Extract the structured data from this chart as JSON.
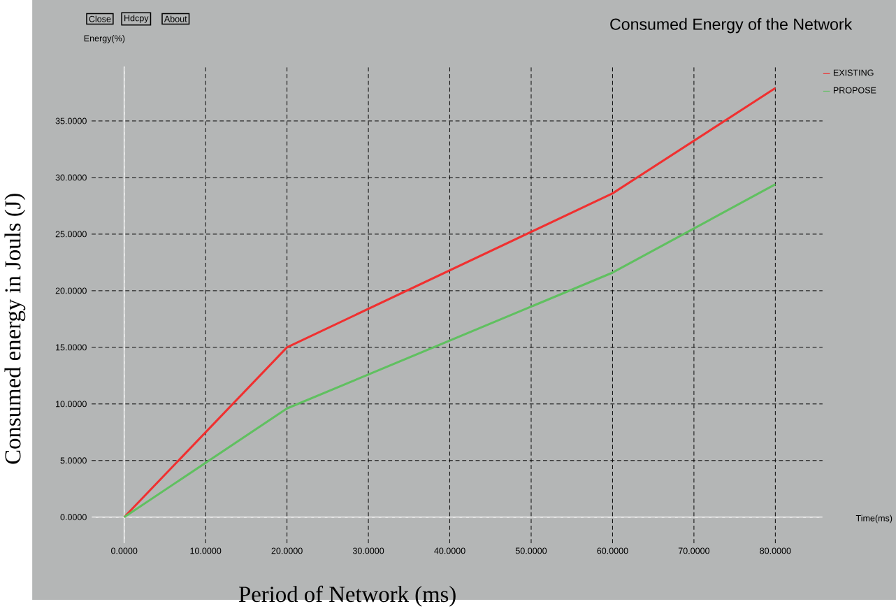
{
  "chart_data": {
    "type": "line",
    "title": "Consumed Energy of the Network",
    "xlabel": "Period of Network (ms)",
    "ylabel": "Consumed energy in Jouls (J)",
    "annotations": [
      "Close",
      "Hdcpy",
      "About",
      "Energy(%)",
      "Time(ms)"
    ],
    "x": [
      0,
      20,
      60,
      80
    ],
    "series": [
      {
        "name": "EXISTING",
        "color": "#f03030",
        "values": [
          0,
          15,
          28.6,
          37.9
        ]
      },
      {
        "name": "PROPOSE",
        "color": "#60c060",
        "values": [
          0,
          9.6,
          21.6,
          29.4
        ]
      }
    ],
    "xlim": [
      -4,
      85.8
    ],
    "ylim": [
      -2.3,
      39.8
    ],
    "xticks": [
      {
        "value": 0,
        "label": "0.0000"
      },
      {
        "value": 10,
        "label": "10.0000"
      },
      {
        "value": 20,
        "label": "20.0000"
      },
      {
        "value": 30,
        "label": "30.0000"
      },
      {
        "value": 40,
        "label": "40.0000"
      },
      {
        "value": 50,
        "label": "50.0000"
      },
      {
        "value": 60,
        "label": "60.0000"
      },
      {
        "value": 70,
        "label": "70.0000"
      },
      {
        "value": 80,
        "label": "80.0000"
      }
    ],
    "yticks": [
      {
        "value": 0,
        "label": "0.0000"
      },
      {
        "value": 5,
        "label": "5.0000"
      },
      {
        "value": 10,
        "label": "10.0000"
      },
      {
        "value": 15,
        "label": "15.0000"
      },
      {
        "value": 20,
        "label": "20.0000"
      },
      {
        "value": 25,
        "label": "25.0000"
      },
      {
        "value": 30,
        "label": "30.0000"
      },
      {
        "value": 35,
        "label": "35.0000"
      }
    ],
    "grid": true,
    "legend": "top right",
    "marker": "none",
    "line_style": "solid"
  }
}
